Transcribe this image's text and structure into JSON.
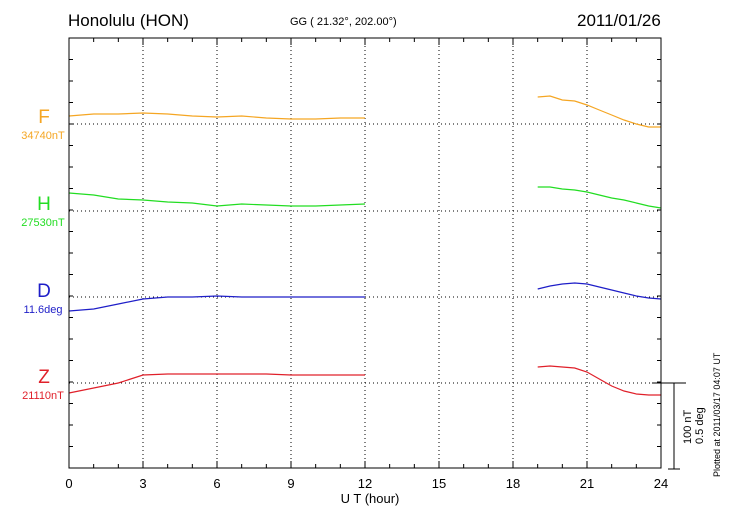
{
  "header": {
    "station": "Honolulu (HON)",
    "coords": "GG ( 21.32°, 202.00°)",
    "date": "2011/01/26"
  },
  "chart_data": {
    "type": "line",
    "title": "Honolulu (HON) 2011/01/26",
    "xlabel": "U T (hour)",
    "xlim": [
      0,
      24
    ],
    "xticks": [
      "0",
      "3",
      "6",
      "9",
      "12",
      "15",
      "18",
      "21",
      "24"
    ],
    "scale_units": [
      "100 nT",
      "0.5 deg"
    ],
    "series": [
      {
        "name": "F",
        "baseline": "34740nT",
        "color": "#f5a623",
        "x": [
          0,
          1,
          2,
          3,
          4,
          5,
          6,
          7,
          8,
          9,
          10,
          11,
          12,
          19,
          19.5,
          20,
          20.5,
          21,
          21.5,
          22,
          22.5,
          23,
          23.5,
          24
        ],
        "y": [
          8,
          10,
          10,
          11,
          10,
          8,
          7,
          8,
          6,
          5,
          5,
          6,
          6,
          27,
          28,
          24,
          23,
          19,
          14,
          9,
          4,
          0,
          -3,
          -3
        ]
      },
      {
        "name": "H",
        "baseline": "27530nT",
        "color": "#22dd22",
        "x": [
          0,
          1,
          2,
          3,
          4,
          5,
          6,
          7,
          8,
          9,
          10,
          11,
          12,
          19,
          19.5,
          20,
          20.5,
          21,
          21.5,
          22,
          22.5,
          23,
          23.5,
          24
        ],
        "y": [
          18,
          16,
          12,
          11,
          9,
          8,
          5,
          7,
          6,
          5,
          5,
          6,
          7,
          24,
          24,
          22,
          21,
          19,
          16,
          13,
          11,
          8,
          5,
          3
        ]
      },
      {
        "name": "D",
        "baseline": "11.6deg",
        "color": "#1e1ec8",
        "x": [
          0,
          1,
          2,
          3,
          4,
          5,
          6,
          7,
          8,
          9,
          10,
          11,
          12,
          19,
          19.5,
          20,
          20.5,
          21,
          21.5,
          22,
          22.5,
          23,
          23.5,
          24
        ],
        "y": [
          -14,
          -12,
          -7,
          -2,
          0,
          0,
          1,
          0,
          0,
          0,
          0,
          0,
          0,
          8,
          11,
          13,
          14,
          13,
          10,
          7,
          4,
          1,
          -1,
          -2
        ]
      },
      {
        "name": "Z",
        "baseline": "21110nT",
        "color": "#e0202a",
        "x": [
          0,
          1,
          2,
          3,
          4,
          5,
          6,
          7,
          8,
          9,
          10,
          11,
          12,
          19,
          19.5,
          20,
          20.5,
          21,
          21.5,
          22,
          22.5,
          23,
          23.5,
          24
        ],
        "y": [
          -10,
          -5,
          0,
          8,
          9,
          9,
          9,
          9,
          9,
          8,
          8,
          8,
          8,
          16,
          17,
          16,
          15,
          11,
          4,
          -3,
          -8,
          -11,
          -12,
          -12
        ]
      }
    ]
  },
  "footer": {
    "plotted": "Plotted at 2011/03/17 04:07 UT"
  }
}
